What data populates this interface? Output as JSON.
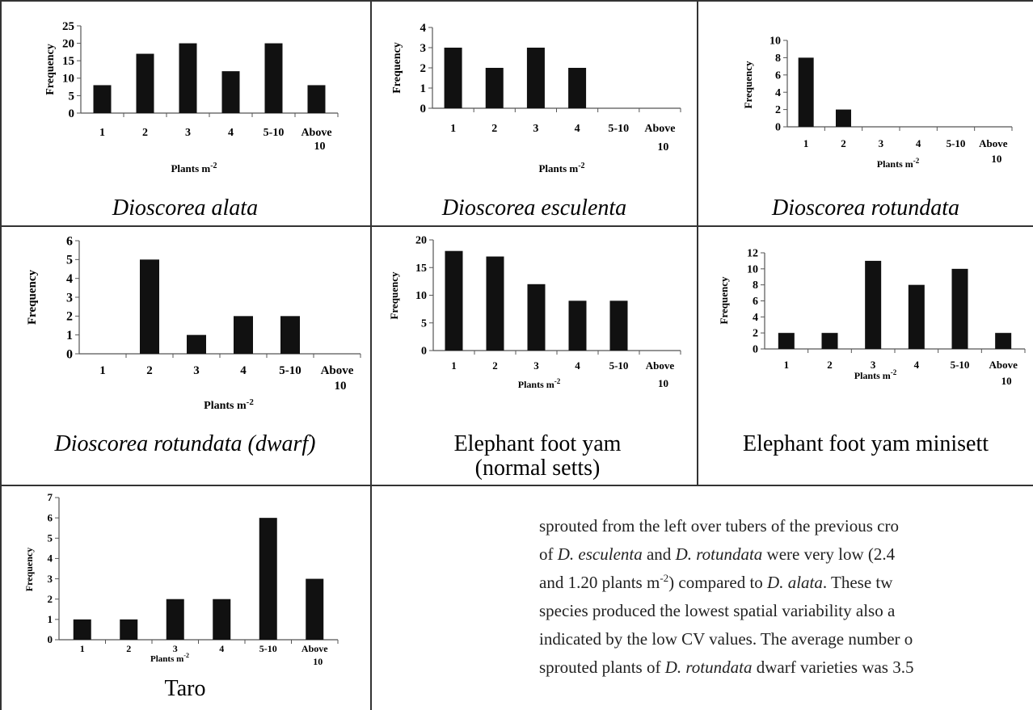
{
  "chart_data": [
    {
      "type": "bar",
      "title": "Dioscorea alata",
      "title_italic": true,
      "xlabel": "Plants m",
      "xlabel_sup": "-2",
      "ylabel": "Frequency",
      "categories": [
        "1",
        "2",
        "3",
        "4",
        "5-10",
        "Above 10"
      ],
      "values": [
        8,
        17,
        20,
        12,
        20,
        8
      ],
      "ylim": [
        0,
        25
      ],
      "yticks": [
        0,
        5,
        10,
        15,
        20,
        25
      ],
      "grid": false
    },
    {
      "type": "bar",
      "title": "Dioscorea esculenta",
      "title_italic": true,
      "xlabel": "Plants m",
      "xlabel_sup": "-2",
      "ylabel": "Frequency",
      "categories": [
        "1",
        "2",
        "3",
        "4",
        "5-10",
        "Above 10"
      ],
      "values": [
        3,
        2,
        3,
        2,
        0,
        0
      ],
      "ylim": [
        0,
        4
      ],
      "yticks": [
        0,
        1,
        2,
        3,
        4
      ],
      "grid": false
    },
    {
      "type": "bar",
      "title": "Dioscorea rotundata",
      "title_italic": true,
      "xlabel": "Plants m",
      "xlabel_sup": "-2",
      "ylabel": "Frequency",
      "categories": [
        "1",
        "2",
        "3",
        "4",
        "5-10",
        "Above 10"
      ],
      "values": [
        8,
        2,
        0,
        0,
        0,
        0
      ],
      "ylim": [
        0,
        10
      ],
      "yticks": [
        0,
        2,
        4,
        6,
        8,
        10
      ],
      "grid": false
    },
    {
      "type": "bar",
      "title": "Dioscorea rotundata (dwarf)",
      "title_italic": true,
      "xlabel": "Plants m",
      "xlabel_sup": "-2",
      "ylabel": "Frequency",
      "categories": [
        "1",
        "2",
        "3",
        "4",
        "5-10",
        "Above 10"
      ],
      "values": [
        0,
        5,
        1,
        2,
        2,
        0
      ],
      "ylim": [
        0,
        6
      ],
      "yticks": [
        0,
        1,
        2,
        3,
        4,
        5,
        6
      ],
      "grid": false
    },
    {
      "type": "bar",
      "title": "Elephant foot yam (normal setts)",
      "title_italic": false,
      "xlabel": "Plants m",
      "xlabel_sup": "-2",
      "ylabel": "Frequency",
      "categories": [
        "1",
        "2",
        "3",
        "4",
        "5-10",
        "Above 10"
      ],
      "values": [
        18,
        17,
        12,
        9,
        9,
        0
      ],
      "ylim": [
        0,
        20
      ],
      "yticks": [
        0,
        5,
        10,
        15,
        20
      ],
      "grid": false
    },
    {
      "type": "bar",
      "title": "Elephant foot yam minisett",
      "title_italic": false,
      "xlabel": "Plants m",
      "xlabel_sup": "-2",
      "ylabel": "Frequency",
      "categories": [
        "1",
        "2",
        "3",
        "4",
        "5-10",
        "Above 10"
      ],
      "values": [
        2,
        2,
        11,
        8,
        10,
        2
      ],
      "ylim": [
        0,
        12
      ],
      "yticks": [
        0,
        2,
        4,
        6,
        8,
        10,
        12
      ],
      "grid": false
    },
    {
      "type": "bar",
      "title": "Taro",
      "title_italic": false,
      "xlabel": "Plants m",
      "xlabel_sup": "-2",
      "ylabel": "Frequency",
      "categories": [
        "1",
        "2",
        "3",
        "4",
        "5-10",
        "Above 10"
      ],
      "values": [
        1,
        1,
        2,
        2,
        6,
        3
      ],
      "ylim": [
        0,
        7
      ],
      "yticks": [
        0,
        1,
        2,
        3,
        4,
        5,
        6,
        7
      ],
      "grid": false
    }
  ],
  "body_text": {
    "line1": "sprouted from the left over tubers of the previous cro",
    "line2_a": "of ",
    "line2_b": "D. esculenta",
    "line2_c": " and ",
    "line2_d": "D. rotundata",
    "line2_e": " were very low (2.4",
    "line3_a": "and 1.20 plants m",
    "line3_sup": "-2",
    "line3_b": ") compared to ",
    "line3_c": "D. alata",
    "line3_d": ". These tw",
    "line4": "species produced the lowest spatial variability also a",
    "line5": "indicated by the low CV values.  The average number o",
    "line6_a": "sprouted plants of ",
    "line6_b": "D. rotundata",
    "line6_c": " dwarf varieties was 3.5"
  }
}
